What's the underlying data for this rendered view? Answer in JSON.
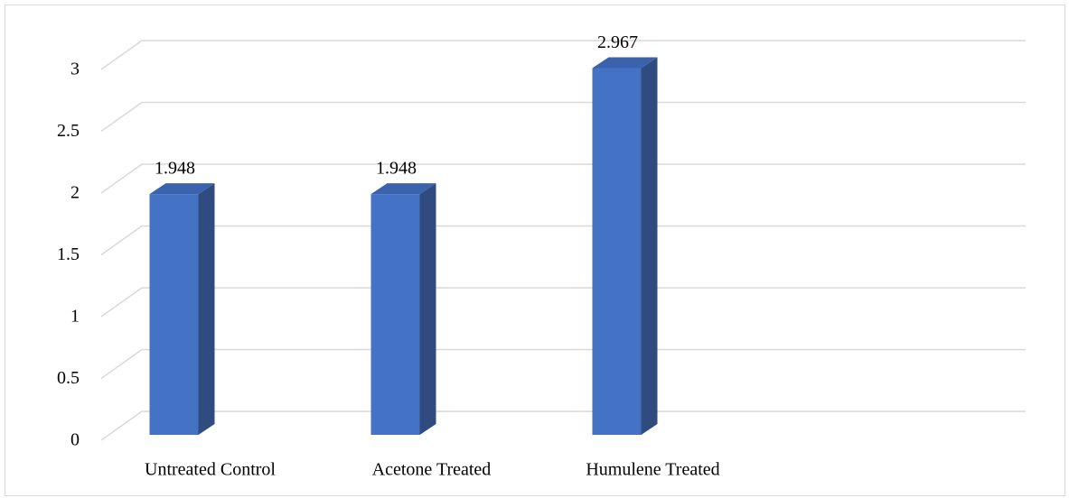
{
  "chart_data": {
    "type": "bar3d",
    "categories": [
      "Untreated Control",
      "Acetone Treated",
      "Humulene Treated"
    ],
    "values": [
      1.948,
      1.948,
      2.967
    ],
    "color": "#4472c4",
    "ylim": [
      0,
      3
    ],
    "yticks": [
      0,
      0.5,
      1,
      1.5,
      2,
      2.5,
      3
    ],
    "grid": true
  }
}
